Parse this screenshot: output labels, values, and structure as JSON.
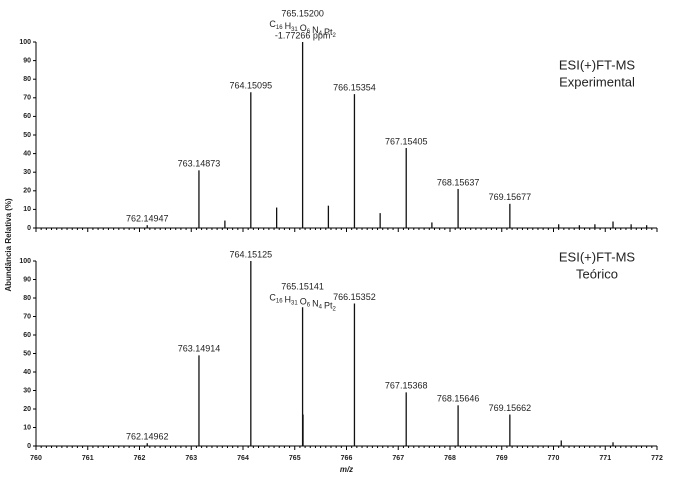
{
  "chart_data": [
    {
      "type": "stem",
      "title_lines": [
        "ESI(+)FT-MS",
        "Experimental"
      ],
      "ylabel": "Abundância Relativa (%)",
      "x": [
        762.14947,
        763.14873,
        763.65,
        764.15095,
        764.65,
        765.152,
        765.65,
        766.15354,
        766.65,
        767.15405,
        767.65,
        768.15637,
        769.15677,
        770.1,
        770.5,
        770.8,
        771.15,
        771.5,
        771.8
      ],
      "values": [
        1.5,
        31,
        4,
        73,
        11,
        100,
        12,
        72,
        8,
        43,
        3,
        21,
        13,
        2,
        1.5,
        2,
        3.5,
        2,
        1.5
      ],
      "peak_labels": [
        "762.14947",
        "763.14873",
        null,
        "764.15095",
        null,
        "765.15200",
        null,
        "766.15354",
        null,
        "767.15405",
        null,
        "768.15637",
        "769.15677",
        null,
        null,
        null,
        null,
        null,
        null
      ],
      "annotation": {
        "peak": 5,
        "elements": [
          "C",
          "H",
          "O",
          "N",
          "Pt"
        ],
        "counts": [
          "16",
          "31",
          "6",
          "4",
          "2"
        ],
        "ppm": "-1.77266 ppm"
      },
      "color": "#111111",
      "xlim": [
        760,
        772
      ],
      "xticks": [
        760,
        761,
        762,
        763,
        764,
        765,
        766,
        767,
        768,
        769,
        770,
        771,
        772
      ],
      "ylim": [
        0,
        100
      ],
      "yticks": [
        0,
        10,
        20,
        30,
        40,
        50,
        60,
        70,
        80,
        90,
        100
      ]
    },
    {
      "type": "stem",
      "title_lines": [
        "ESI(+)FT-MS",
        "Teórico"
      ],
      "xlabel": "m/z",
      "x": [
        762.14962,
        763.14914,
        764.15125,
        765.15141,
        765.16,
        766.15352,
        767.15368,
        768.15646,
        769.15662,
        770.15,
        771.15
      ],
      "values": [
        1.5,
        49,
        100,
        75,
        17,
        77,
        29,
        22,
        17,
        3,
        2
      ],
      "peak_labels": [
        "762.14962",
        "763.14914",
        "764.15125",
        "765.15141",
        null,
        "766.15352",
        "767.15368",
        "768.15646",
        "769.15662",
        null,
        null
      ],
      "annotation": {
        "peak": 3,
        "elements": [
          "C",
          "H",
          "O",
          "N",
          "Pt"
        ],
        "counts": [
          "16",
          "31",
          "6",
          "4",
          "2"
        ]
      },
      "color": "#111111",
      "xlim": [
        760,
        772
      ],
      "xticks": [
        760,
        761,
        762,
        763,
        764,
        765,
        766,
        767,
        768,
        769,
        770,
        771,
        772
      ],
      "ylim": [
        0,
        100
      ],
      "yticks": [
        0,
        10,
        20,
        30,
        40,
        50,
        60,
        70,
        80,
        90,
        100
      ]
    }
  ]
}
